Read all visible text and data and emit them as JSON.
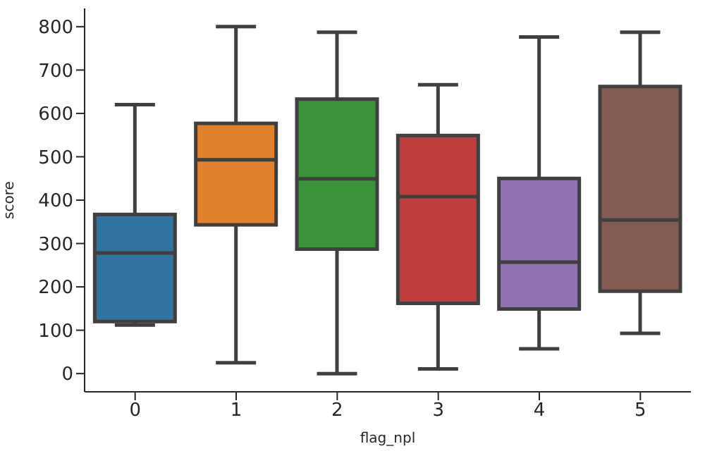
{
  "chart_data": {
    "type": "box",
    "xlabel": "flag_npl",
    "ylabel": "score",
    "categories": [
      "0",
      "1",
      "2",
      "3",
      "4",
      "5"
    ],
    "colors": [
      "#3274a1",
      "#e1812c",
      "#3a923a",
      "#c03d3e",
      "#9372b2",
      "#845b53"
    ],
    "boxes": [
      {
        "low": 112,
        "q1": 120,
        "median": 278,
        "q3": 367,
        "high": 620
      },
      {
        "low": 25,
        "q1": 343,
        "median": 493,
        "q3": 577,
        "high": 800
      },
      {
        "low": 0,
        "q1": 287,
        "median": 449,
        "q3": 633,
        "high": 787
      },
      {
        "low": 11,
        "q1": 162,
        "median": 408,
        "q3": 549,
        "high": 666
      },
      {
        "low": 57,
        "q1": 149,
        "median": 257,
        "q3": 450,
        "high": 776
      },
      {
        "low": 93,
        "q1": 190,
        "median": 354,
        "q3": 662,
        "high": 787
      }
    ],
    "ylim": [
      -42,
      842
    ],
    "yticks": [
      0,
      100,
      200,
      300,
      400,
      500,
      600,
      700,
      800
    ],
    "grid": false
  }
}
